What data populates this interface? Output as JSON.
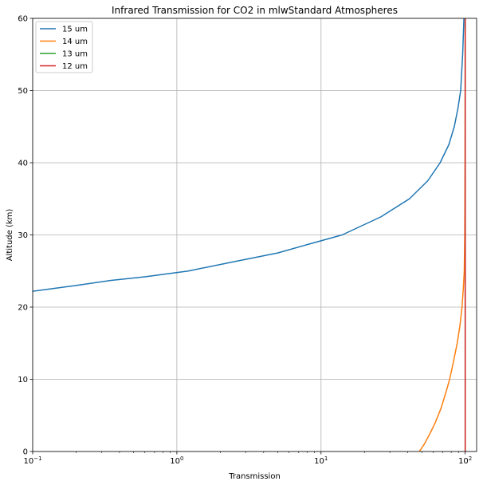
{
  "chart_data": {
    "type": "line",
    "title": "Infrared Transmission for CO2 in mlwStandard Atmospheres",
    "xlabel": "Transmission",
    "ylabel": "Altitude (km)",
    "xscale": "log",
    "xlim": [
      0.1,
      120
    ],
    "ylim": [
      0,
      60
    ],
    "grid": true,
    "legend_position": "top-left",
    "x_ticks": [
      {
        "value": 0.1,
        "base": "10",
        "exp": "−1"
      },
      {
        "value": 1,
        "base": "10",
        "exp": "0"
      },
      {
        "value": 10,
        "base": "10",
        "exp": "1"
      },
      {
        "value": 100,
        "base": "10",
        "exp": "2"
      }
    ],
    "y_ticks": [
      "0",
      "10",
      "20",
      "30",
      "40",
      "50",
      "60"
    ],
    "series": [
      {
        "name": "15 um",
        "color": "#1f77b4",
        "points": [
          [
            0.1,
            22.2
          ],
          [
            0.2,
            23.0
          ],
          [
            0.35,
            23.7
          ],
          [
            0.6,
            24.2
          ],
          [
            1.2,
            25.0
          ],
          [
            2.5,
            26.3
          ],
          [
            5.0,
            27.5
          ],
          [
            8.5,
            28.8
          ],
          [
            14,
            30.0
          ],
          [
            26,
            32.5
          ],
          [
            41,
            35.0
          ],
          [
            55,
            37.5
          ],
          [
            67,
            40.0
          ],
          [
            77,
            42.5
          ],
          [
            84,
            45.0
          ],
          [
            89,
            47.5
          ],
          [
            93,
            50.0
          ],
          [
            96,
            55.0
          ],
          [
            98,
            60.0
          ]
        ]
      },
      {
        "name": "14 um",
        "color": "#ff7f0e",
        "points": [
          [
            48,
            0.0
          ],
          [
            52,
            1.0
          ],
          [
            57,
            2.5
          ],
          [
            62,
            4.0
          ],
          [
            68,
            6.0
          ],
          [
            73,
            8.0
          ],
          [
            78,
            10.0
          ],
          [
            83,
            12.5
          ],
          [
            88,
            15.0
          ],
          [
            92,
            17.5
          ],
          [
            95,
            20.0
          ],
          [
            97,
            22.5
          ],
          [
            98.5,
            25.0
          ],
          [
            99.3,
            30.0
          ],
          [
            99.8,
            40.0
          ],
          [
            100,
            50.0
          ],
          [
            100,
            60.0
          ]
        ]
      },
      {
        "name": "13 um",
        "color": "#2ca02c",
        "points": [
          [
            100,
            0.0
          ],
          [
            100,
            60.0
          ]
        ]
      },
      {
        "name": "12 um",
        "color": "#d62728",
        "points": [
          [
            100,
            0.0
          ],
          [
            100,
            60.0
          ]
        ]
      }
    ]
  }
}
